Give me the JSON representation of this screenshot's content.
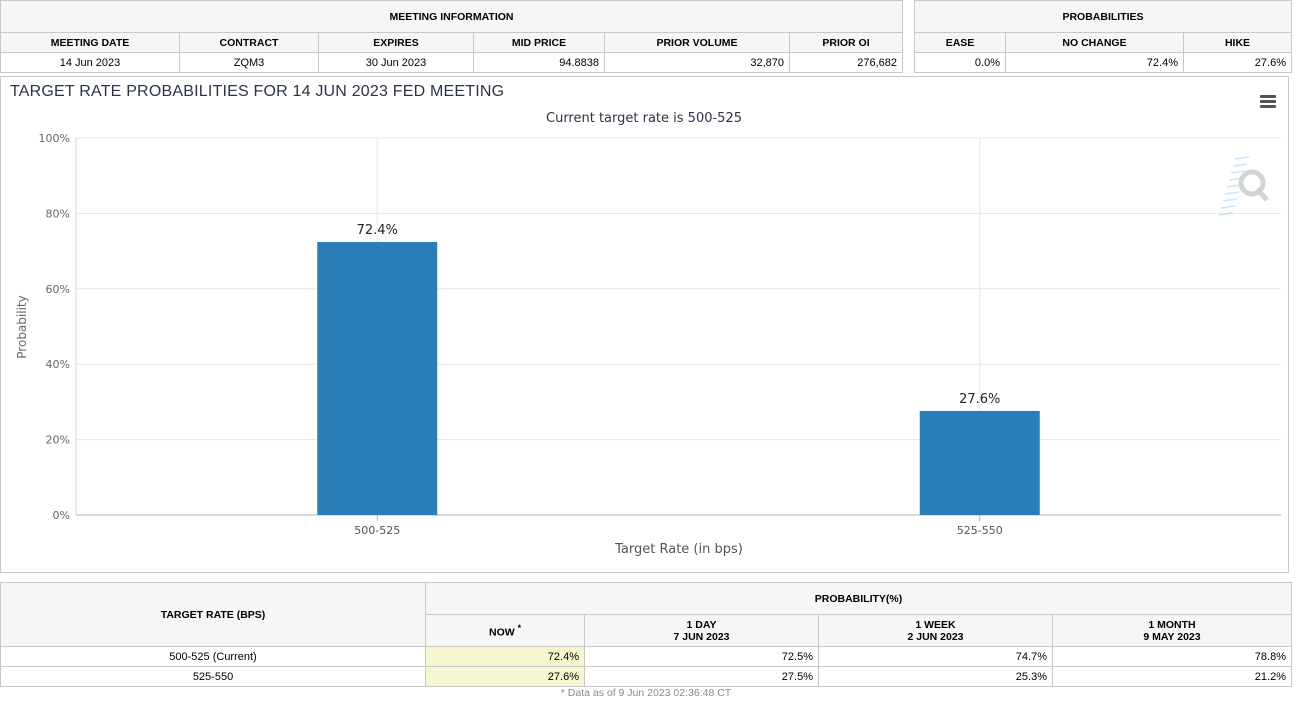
{
  "meeting_info": {
    "title": "MEETING INFORMATION",
    "columns": [
      "MEETING DATE",
      "CONTRACT",
      "EXPIRES",
      "MID PRICE",
      "PRIOR VOLUME",
      "PRIOR OI"
    ],
    "row": [
      "14 Jun 2023",
      "ZQM3",
      "30 Jun 2023",
      "94.8838",
      "32,870",
      "276,682"
    ]
  },
  "probabilities": {
    "title": "PROBABILITIES",
    "columns": [
      "EASE",
      "NO CHANGE",
      "HIKE"
    ],
    "row": [
      "0.0%",
      "72.4%",
      "27.6%"
    ]
  },
  "chart": {
    "heading": "TARGET RATE PROBABILITIES FOR 14 JUN 2023 FED MEETING",
    "menu_icon": "hamburger-menu-icon",
    "watermark_icon": "q-logo-icon"
  },
  "chart_data": {
    "type": "bar",
    "title": "Current target rate is 500-525",
    "categories": [
      "500-525",
      "525-550"
    ],
    "values": [
      72.4,
      27.6
    ],
    "data_labels": [
      "72.4%",
      "27.6%"
    ],
    "xlabel": "Target Rate (in bps)",
    "ylabel": "Probability",
    "ylim": [
      0,
      100
    ],
    "yticks": [
      0,
      20,
      40,
      60,
      80,
      100
    ],
    "ytick_labels": [
      "0%",
      "20%",
      "40%",
      "60%",
      "80%",
      "100%"
    ],
    "grid": true,
    "bar_color": "#2a7eb8",
    "grid_color": "#e6e6e6"
  },
  "history": {
    "target_header": "TARGET RATE (BPS)",
    "prob_header": "PROBABILITY(%)",
    "now_label": "NOW",
    "now_mark": "*",
    "periods": [
      {
        "label": "1 DAY",
        "date": "7 JUN 2023"
      },
      {
        "label": "1 WEEK",
        "date": "2 JUN 2023"
      },
      {
        "label": "1 MONTH",
        "date": "9 MAY 2023"
      }
    ],
    "rows": [
      {
        "rate": "500-525 (Current)",
        "now": "72.4%",
        "day": "72.5%",
        "week": "74.7%",
        "month": "78.8%"
      },
      {
        "rate": "525-550",
        "now": "27.6%",
        "day": "27.5%",
        "week": "25.3%",
        "month": "21.2%"
      }
    ],
    "footnote": "* Data as of 9 Jun 2023 02:36:48 CT"
  }
}
